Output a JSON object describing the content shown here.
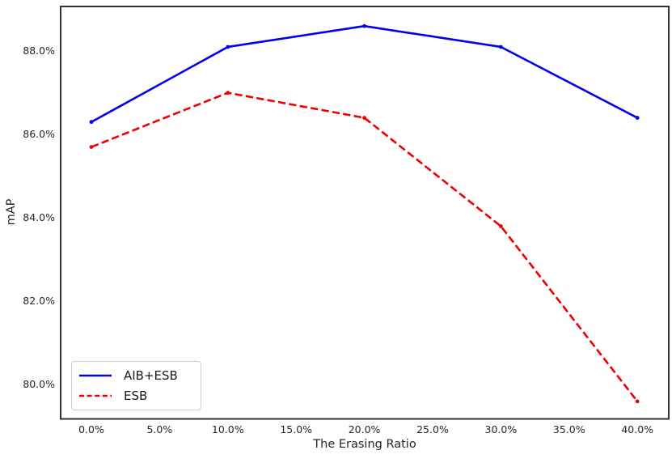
{
  "figure": {
    "background": "#ffffff",
    "spine_color": "#333333",
    "text_color": "#262626",
    "legend_border_color": "#cccccc"
  },
  "chart_data": {
    "type": "line",
    "title": "",
    "xlabel": "The Erasing Ratio",
    "ylabel": "mAP",
    "x": [
      0,
      10,
      20,
      30,
      40
    ],
    "series": [
      {
        "name": "AIB+ESB",
        "values": [
          86.3,
          88.1,
          88.6,
          88.1,
          86.4
        ],
        "color": "#0000ee",
        "style": "solid"
      },
      {
        "name": "ESB",
        "values": [
          85.7,
          87.0,
          86.4,
          83.8,
          79.6
        ],
        "color": "#ee0000",
        "style": "dashed"
      }
    ],
    "xlim": [
      -2.25,
      42.3
    ],
    "ylim": [
      79.18,
      89.07
    ],
    "x_ticks": {
      "values": [
        0,
        5,
        10,
        15,
        20,
        25,
        30,
        35,
        40
      ],
      "labels": [
        "0.0%",
        "5.0%",
        "10.0%",
        "15.0%",
        "20.0%",
        "25.0%",
        "30.0%",
        "35.0%",
        "40.0%"
      ]
    },
    "y_ticks": {
      "values": [
        80,
        82,
        84,
        86,
        88
      ],
      "labels": [
        "80.0%",
        "82.0%",
        "84.0%",
        "86.0%",
        "88.0%"
      ]
    },
    "grid": false,
    "legend_position": "lower-left"
  }
}
